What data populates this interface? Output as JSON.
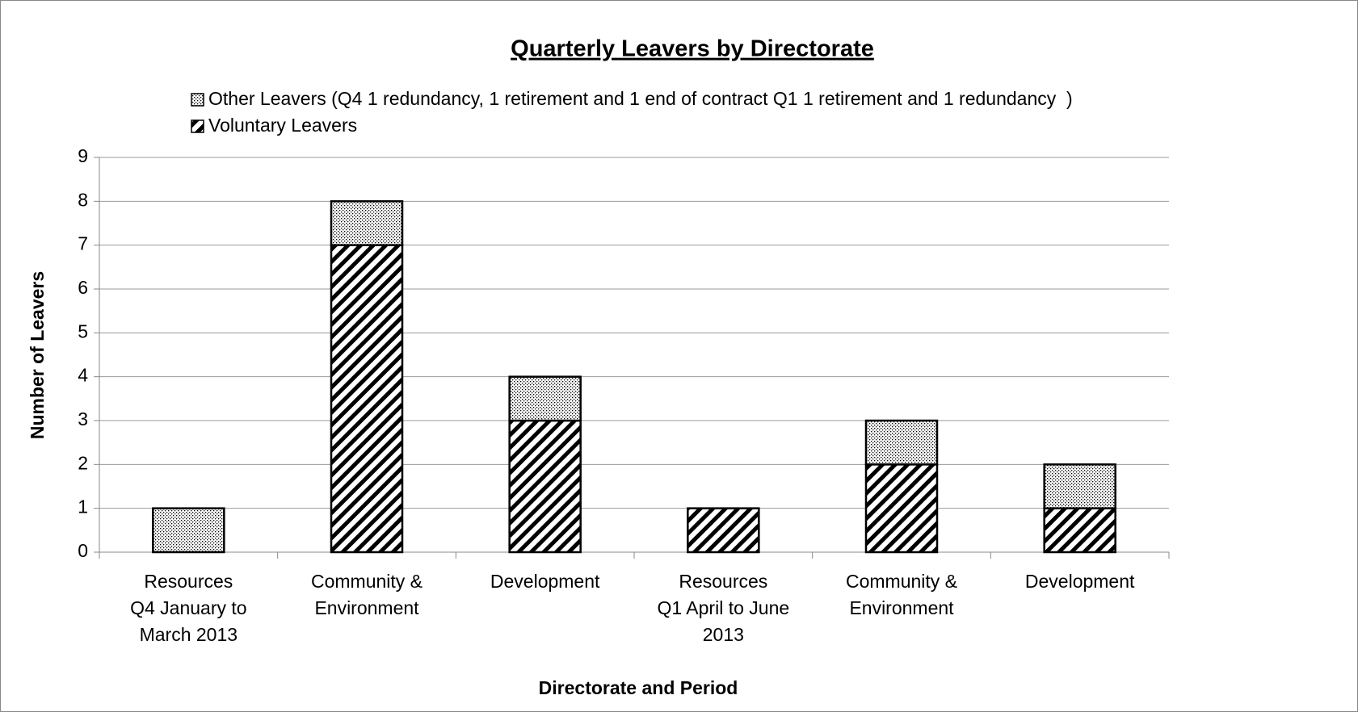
{
  "chart_data": {
    "type": "stacked_bar",
    "title": "Quarterly Leavers by Directorate",
    "x_label": "Directorate and Period",
    "y_label": "Number of Leavers",
    "categories": [
      [
        "Resources",
        "Q4 January to",
        "March 2013"
      ],
      [
        "Community &",
        "Environment"
      ],
      [
        "Development"
      ],
      [
        "Resources",
        "Q1 April to June",
        "2013"
      ],
      [
        "Community &",
        "Environment"
      ],
      [
        "Development"
      ]
    ],
    "series": [
      {
        "name": "Voluntary Leavers",
        "color": "#000000",
        "pattern": "hatch",
        "values": [
          0,
          7,
          3,
          1,
          2,
          1
        ]
      },
      {
        "name": "Other Leavers (Q4 1 redundancy, 1 retirement and 1 end of contract Q1 1 retirement and 1 redundancy  )",
        "color": "#000000",
        "pattern": "dots",
        "values": [
          1,
          1,
          1,
          0,
          1,
          1
        ]
      }
    ],
    "legend_order": [
      1,
      0
    ],
    "ylim": [
      0,
      9
    ],
    "yticks": [
      0,
      1,
      2,
      3,
      4,
      5,
      6,
      7,
      8,
      9
    ],
    "grid": true
  }
}
